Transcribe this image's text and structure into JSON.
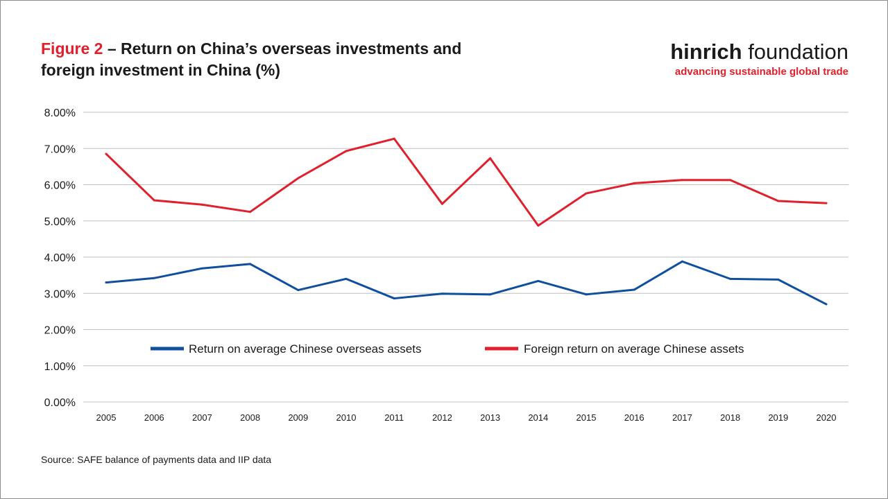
{
  "title": {
    "figure_label": "Figure 2",
    "separator": "–",
    "line1": "Return on China’s overseas investments and",
    "line2": "foreign investment in China (%)"
  },
  "logo": {
    "word1": "hinrich",
    "word2": "foundation",
    "tagline": "advancing sustainable global trade"
  },
  "source": "Source: SAFE balance of payments data and IIP data",
  "colors": {
    "blue": "#0f4f9e",
    "red": "#e0202c",
    "grid": "#bfbfbf",
    "text": "#1a1a1a"
  },
  "chart_data": {
    "type": "line",
    "title": "Return on China’s overseas investments and foreign investment in China (%)",
    "xlabel": "",
    "ylabel": "",
    "x": [
      "2005",
      "2006",
      "2007",
      "2008",
      "2009",
      "2010",
      "2011",
      "2012",
      "2013",
      "2014",
      "2015",
      "2016",
      "2017",
      "2018",
      "2019",
      "2020"
    ],
    "ylim": [
      0,
      8
    ],
    "yticks": [
      "0.00%",
      "1.00%",
      "2.00%",
      "3.00%",
      "4.00%",
      "5.00%",
      "6.00%",
      "7.00%",
      "8.00%"
    ],
    "grid": true,
    "legend": "center",
    "series": [
      {
        "name": "Return on average Chinese overseas assets",
        "color": "#0f4f9e",
        "values": [
          3.3,
          3.42,
          3.69,
          3.81,
          3.09,
          3.4,
          2.86,
          2.99,
          2.97,
          3.34,
          2.97,
          3.1,
          3.88,
          3.4,
          3.38,
          2.7
        ]
      },
      {
        "name": "Foreign return on average Chinese assets",
        "color": "#e0202c",
        "values": [
          6.85,
          5.57,
          5.45,
          5.25,
          6.18,
          6.93,
          7.27,
          5.47,
          6.73,
          4.87,
          5.76,
          6.04,
          6.13,
          6.13,
          5.55,
          5.49
        ]
      }
    ]
  }
}
